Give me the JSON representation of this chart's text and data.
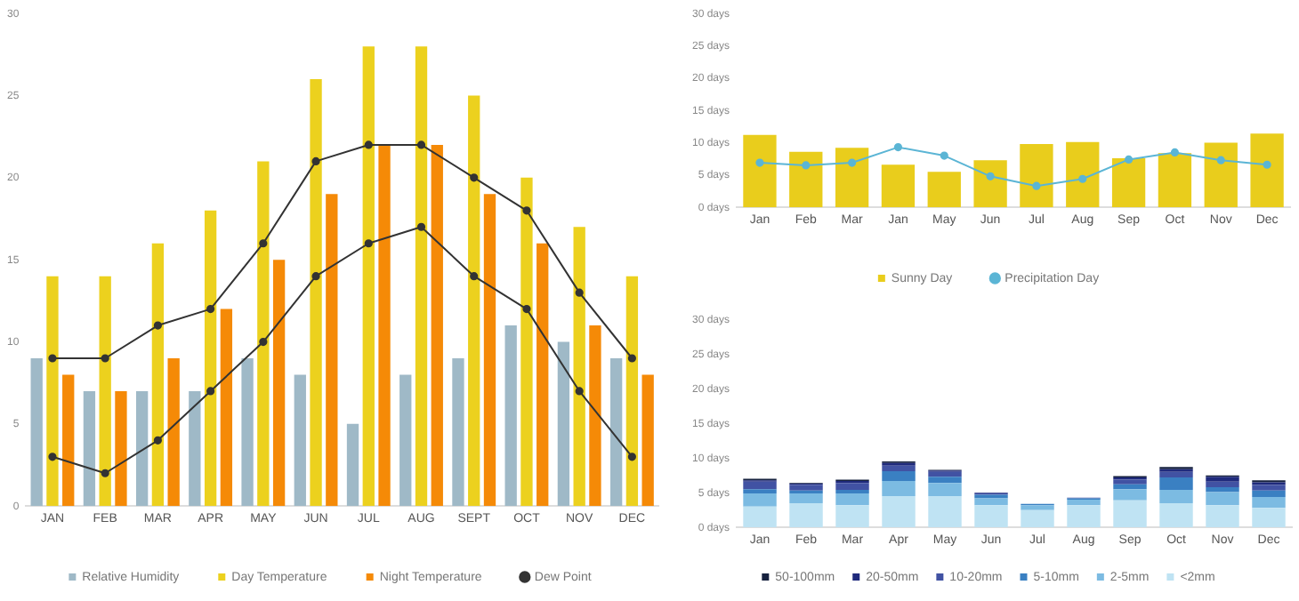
{
  "chart_data": [
    {
      "type": "bar",
      "categories": [
        "JAN",
        "FEB",
        "MAR",
        "APR",
        "MAY",
        "JUN",
        "JUL",
        "AUG",
        "SEPT",
        "OCT",
        "NOV",
        "DEC"
      ],
      "ylim": [
        0,
        30
      ],
      "yticks": [
        0,
        5,
        10,
        15,
        20,
        25,
        30
      ],
      "legend": "bottom",
      "marker": "circle",
      "series": [
        {
          "name": "Relative Humidity",
          "color": "#9fb9c7",
          "values": [
            9,
            7,
            7,
            7,
            9,
            8,
            5,
            8,
            9,
            11,
            10,
            9
          ]
        },
        {
          "name": "Day Temperature",
          "color": "#ecd11e",
          "values": [
            14,
            14,
            16,
            18,
            21,
            26,
            28,
            28,
            25,
            20,
            17,
            14
          ]
        },
        {
          "name": "Night Temperature",
          "color": "#f58a07",
          "values": [
            8,
            7,
            9,
            12,
            15,
            19,
            22,
            22,
            19,
            16,
            11,
            8
          ]
        },
        {
          "type": "line",
          "color": "#333333",
          "values": [
            9,
            9,
            11,
            12,
            16,
            21,
            22,
            22,
            20,
            18,
            13,
            9
          ]
        },
        {
          "name": "Dew Point",
          "type": "line",
          "color": "#333333",
          "values": [
            3,
            2,
            4,
            7,
            10,
            14,
            16,
            17,
            14,
            12,
            7,
            3
          ]
        }
      ]
    },
    {
      "type": "bar",
      "categories": [
        "Jan",
        "Feb",
        "Mar",
        "Jan",
        "May",
        "Jun",
        "Jul",
        "Aug",
        "Sep",
        "Oct",
        "Nov",
        "Dec"
      ],
      "ylim": [
        0,
        30
      ],
      "yticks": [
        {
          "value": 0,
          "label": "0 days"
        },
        {
          "value": 5,
          "label": "5 days"
        },
        {
          "value": 10,
          "label": "10 days"
        },
        {
          "value": 15,
          "label": "15 days"
        },
        {
          "value": 20,
          "label": "20 days"
        },
        {
          "value": 25,
          "label": "25 days"
        },
        {
          "value": 30,
          "label": "30 days"
        }
      ],
      "legend": "bottom",
      "marker": "circle",
      "series": [
        {
          "name": "Sunny Day",
          "color": "#e9cd1c",
          "values": [
            11.2,
            8.6,
            9.2,
            6.6,
            5.5,
            7.3,
            9.8,
            10.1,
            7.6,
            8.4,
            10,
            11.4
          ]
        },
        {
          "name": "Precipitation Day",
          "type": "line",
          "color": "#5bb5d5",
          "values": [
            6.9,
            6.5,
            6.9,
            9.3,
            8.0,
            4.8,
            3.3,
            4.4,
            7.4,
            8.5,
            7.3,
            6.6
          ]
        }
      ]
    },
    {
      "type": "bar",
      "stacked": true,
      "categories": [
        "Jan",
        "Feb",
        "Mar",
        "Apr",
        "May",
        "Jun",
        "Jul",
        "Aug",
        "Sep",
        "Oct",
        "Nov",
        "Dec"
      ],
      "ylim": [
        0,
        30
      ],
      "yticks": [
        {
          "value": 0,
          "label": "0 days"
        },
        {
          "value": 5,
          "label": "5 days"
        },
        {
          "value": 10,
          "label": "10 days"
        },
        {
          "value": 15,
          "label": "15 days"
        },
        {
          "value": 20,
          "label": "20 days"
        },
        {
          "value": 25,
          "label": "25 days"
        },
        {
          "value": 30,
          "label": "30 days"
        }
      ],
      "legend": "bottom",
      "series": [
        {
          "name": "<2mm",
          "color": "#bfe3f3",
          "values": [
            3.0,
            3.5,
            3.2,
            4.5,
            4.5,
            3.2,
            2.5,
            3.2,
            3.9,
            3.5,
            3.2,
            2.8
          ]
        },
        {
          "name": "2-5mm",
          "color": "#7cbbe2",
          "values": [
            1.9,
            1.4,
            1.7,
            2.2,
            1.9,
            1.0,
            0.7,
            0.8,
            1.6,
            1.9,
            1.9,
            1.6
          ]
        },
        {
          "name": "5-10mm",
          "color": "#3a80c2",
          "values": [
            0.6,
            0.4,
            0.5,
            1.4,
            0.9,
            0.5,
            0.2,
            0.2,
            0.7,
            1.8,
            0.7,
            0.9
          ]
        },
        {
          "name": "10-20mm",
          "color": "#4152a3",
          "values": [
            1.1,
            0.8,
            1.0,
            0.8,
            0.7,
            0.2,
            0,
            0.1,
            0.7,
            0.8,
            0.8,
            0.8
          ]
        },
        {
          "name": "20-50mm",
          "color": "#1f2a7c",
          "values": [
            0.2,
            0.2,
            0.3,
            0.4,
            0.2,
            0.1,
            0,
            0,
            0.3,
            0.4,
            0.7,
            0.4
          ]
        },
        {
          "name": "50-100mm",
          "color": "#17223f",
          "values": [
            0.2,
            0.1,
            0.2,
            0.2,
            0.1,
            0,
            0,
            0,
            0.2,
            0.3,
            0.2,
            0.3
          ]
        }
      ]
    }
  ]
}
